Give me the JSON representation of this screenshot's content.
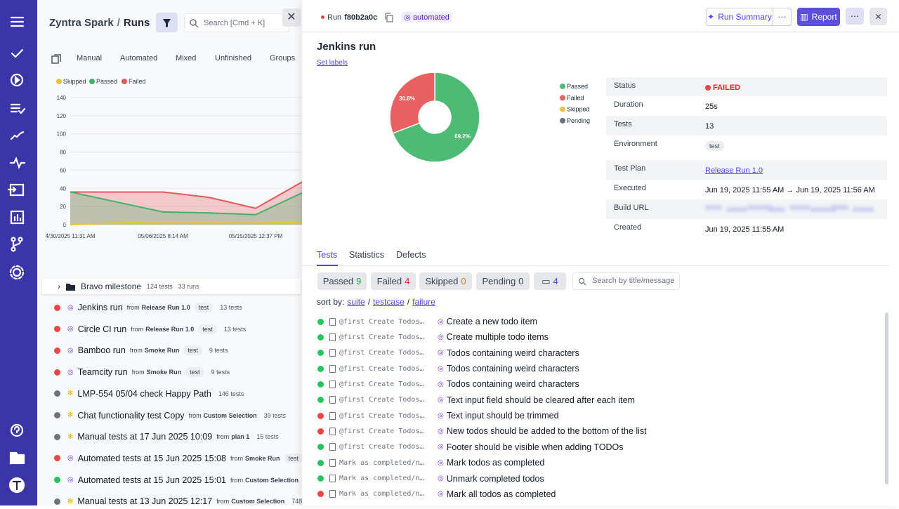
{
  "header": {
    "brand": "Zyntra Spark",
    "separator": "/",
    "section": "Runs",
    "search_placeholder": "Search [Cmd + K]"
  },
  "run_tabs": [
    "Manual",
    "Automated",
    "Mixed",
    "Unfinished",
    "Groups"
  ],
  "run_chart": {
    "type": "area",
    "categories": [
      "4/30/2025 11:31 AM",
      null,
      "05/06/2025 8:14 AM",
      null,
      "05/15/2025 12:37 PM",
      null
    ],
    "series": [
      {
        "name": "Skipped",
        "color": "#e8c33c",
        "values": [
          0,
          2,
          3,
          3,
          3,
          2
        ]
      },
      {
        "name": "Passed",
        "color": "#46b06a",
        "values": [
          36,
          25,
          14,
          13,
          11,
          35
        ]
      },
      {
        "name": "Failed",
        "color": "#e15a5a",
        "values": [
          36,
          36,
          36,
          30,
          18,
          47
        ]
      }
    ],
    "ylim": [
      0,
      140
    ],
    "yticks": [
      0,
      20,
      40,
      60,
      80,
      100,
      120,
      140
    ],
    "grid": true
  },
  "milestone": {
    "name": "Bravo milestone",
    "tests": "124 tests",
    "runs": "33 runs"
  },
  "runs": [
    {
      "name": "Jenkins run",
      "from": "from",
      "source": "Release Run 1.0",
      "tag": "test",
      "count": "13 tests",
      "status": "failed",
      "kind": "automated"
    },
    {
      "name": "Circle CI run",
      "from": "from",
      "source": "Release Run 1.0",
      "tag": "test",
      "count": "13 tests",
      "status": "failed",
      "kind": "automated"
    },
    {
      "name": "Bamboo run",
      "from": "from",
      "source": "Smoke Run",
      "tag": "test",
      "count": "9 tests",
      "status": "failed",
      "kind": "automated"
    },
    {
      "name": "Teamcity run",
      "from": "from",
      "source": "Smoke Run",
      "tag": "test",
      "count": "9 tests",
      "status": "failed",
      "kind": "automated"
    },
    {
      "name": "LMP-554 05/04 check Happy Path",
      "count": "146 tests",
      "status": "unfinished",
      "kind": "manual"
    },
    {
      "name": "Chat functionality test Copy",
      "from": "from",
      "source": "Custom Selection",
      "count": "39 tests",
      "status": "unfinished",
      "kind": "manual"
    },
    {
      "name": "Manual tests at 17 Jun 2025 10:09",
      "from": "from",
      "source": "plan 1",
      "count": "15 tests",
      "status": "unfinished",
      "kind": "manual"
    },
    {
      "name": "Automated tests at 15 Jun 2025 15:08",
      "from": "from",
      "source": "Smoke Run",
      "tag": "test",
      "status": "failed",
      "kind": "automated"
    },
    {
      "name": "Automated tests at 15 Jun 2025 15:01",
      "from": "from",
      "source": "Custom Selection",
      "status": "passed",
      "kind": "automated"
    },
    {
      "name": "Manual tests at 13 Jun 2025 12:17",
      "from": "from",
      "source": "Custom Selection",
      "count": "748 tests",
      "status": "unfinished",
      "kind": "manual"
    }
  ],
  "run_header": {
    "label": "Run",
    "id": "f80b2a0c",
    "kind": "automated",
    "summary_button": "Run Summary",
    "report_button": "Report"
  },
  "run_title": "Jenkins run",
  "set_labels": "Set labels",
  "pie_chart": {
    "type": "pie",
    "series": [
      {
        "name": "Passed",
        "color": "#4dbb73",
        "value": 69.2,
        "value_label": "69.2%"
      },
      {
        "name": "Failed",
        "color": "#e8605f",
        "value": 30.8,
        "value_label": "30.8%"
      },
      {
        "name": "Skipped",
        "color": "#eac53e",
        "value": 0
      },
      {
        "name": "Pending",
        "color": "#6b7280",
        "value": 0
      }
    ]
  },
  "details": [
    {
      "label": "Status",
      "value": "FAILED"
    },
    {
      "label": "Duration",
      "value": "25s"
    },
    {
      "label": "Tests",
      "value": "13"
    },
    {
      "label": "Environment",
      "value": "test"
    },
    {
      "label": "Test Plan",
      "value": "Release Run 1.0"
    },
    {
      "label": "Executed",
      "value": "Jun 19, 2025 11:55 AM → Jun 19, 2025 11:56 AM"
    },
    {
      "label": "Build URL"
    },
    {
      "label": "Created",
      "value": "Jun 19, 2025 11:55 AM"
    }
  ],
  "detail_tabs": [
    "Tests",
    "Statistics",
    "Defects"
  ],
  "filters": [
    {
      "label": "Passed",
      "count": 9
    },
    {
      "label": "Failed",
      "count": 4
    },
    {
      "label": "Skipped",
      "count": 0
    },
    {
      "label": "Pending",
      "count": 0
    }
  ],
  "comments_count": 4,
  "test_search_placeholder": "Search by title/message",
  "sort": {
    "label": "sort by:",
    "options": [
      "suite",
      "testcase",
      "failure"
    ],
    "separator": "/"
  },
  "tests": [
    {
      "status": "passed",
      "suite": "@first Create Todos…",
      "title": "Create a new todo item"
    },
    {
      "status": "passed",
      "suite": "@first Create Todos…",
      "title": "Create multiple todo items"
    },
    {
      "status": "passed",
      "suite": "@first Create Todos…",
      "title": "Todos containing weird characters"
    },
    {
      "status": "passed",
      "suite": "@first Create Todos…",
      "title": "Todos containing weird characters"
    },
    {
      "status": "passed",
      "suite": "@first Create Todos…",
      "title": "Todos containing weird characters"
    },
    {
      "status": "passed",
      "suite": "@first Create Todos…",
      "title": "Text input field should be cleared after each item"
    },
    {
      "status": "failed",
      "suite": "@first Create Todos…",
      "title": "Text input should be trimmed"
    },
    {
      "status": "failed",
      "suite": "@first Create Todos…",
      "title": "New todos should be added to the bottom of the list"
    },
    {
      "status": "passed",
      "suite": "@first Create Todos…",
      "title": "Footer should be visible when adding TODOs"
    },
    {
      "status": "passed",
      "suite": "Mark as completed/n…",
      "title": "Mark todos as completed"
    },
    {
      "status": "passed",
      "suite": "Mark as completed/n…",
      "title": "Unmark completed todos"
    },
    {
      "status": "failed",
      "suite": "Mark as completed/n…",
      "title": "Mark all todos as completed"
    }
  ]
}
